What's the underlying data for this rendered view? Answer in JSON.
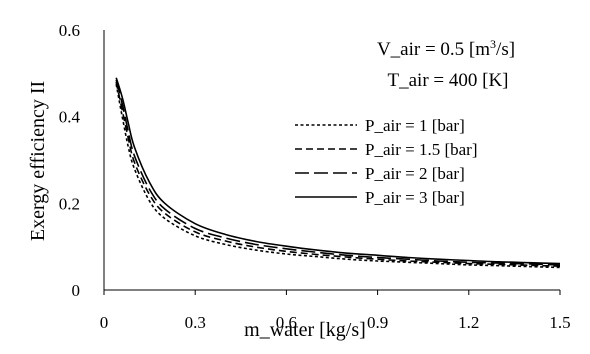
{
  "chart_data": {
    "type": "line",
    "title": "",
    "xlabel": "m_water [kg/s]",
    "ylabel": "Exergy efficiency II",
    "xlim": [
      0,
      1.5
    ],
    "ylim": [
      0,
      0.6
    ],
    "xticks": [
      "0",
      "0.3",
      "0.6",
      "0.9",
      "1.2",
      "1.5"
    ],
    "yticks": [
      "0",
      "0.2",
      "0.4",
      "0.6"
    ],
    "grid": false,
    "legend_position": "right",
    "annotation": {
      "line1_prefix": "V_air = 0.5 [m",
      "line1_sup": "3",
      "line1_suffix": "/s]",
      "line2": "T_air = 400 [K]"
    },
    "series": [
      {
        "name": "P_air = 1 [bar]",
        "dash": "3,2.5",
        "x": [
          0.04,
          0.06,
          0.08,
          0.1,
          0.15,
          0.2,
          0.3,
          0.4,
          0.5,
          0.6,
          0.7,
          0.8,
          0.9,
          1.0,
          1.1,
          1.2,
          1.3,
          1.4,
          1.5
        ],
        "y": [
          0.475,
          0.4,
          0.33,
          0.28,
          0.205,
          0.165,
          0.125,
          0.105,
          0.092,
          0.083,
          0.077,
          0.071,
          0.067,
          0.064,
          0.061,
          0.058,
          0.056,
          0.054,
          0.052
        ]
      },
      {
        "name": "P_air = 1.5 [bar]",
        "dash": "7,4",
        "x": [
          0.04,
          0.06,
          0.08,
          0.1,
          0.15,
          0.2,
          0.3,
          0.4,
          0.5,
          0.6,
          0.7,
          0.8,
          0.9,
          1.0,
          1.1,
          1.2,
          1.3,
          1.4,
          1.5
        ],
        "y": [
          0.48,
          0.415,
          0.35,
          0.295,
          0.22,
          0.177,
          0.134,
          0.113,
          0.099,
          0.089,
          0.082,
          0.076,
          0.071,
          0.067,
          0.064,
          0.061,
          0.059,
          0.057,
          0.055
        ]
      },
      {
        "name": "P_air = 2 [bar]",
        "dash": "14,5",
        "x": [
          0.04,
          0.06,
          0.08,
          0.1,
          0.15,
          0.2,
          0.3,
          0.4,
          0.5,
          0.6,
          0.7,
          0.8,
          0.9,
          1.0,
          1.1,
          1.2,
          1.3,
          1.4,
          1.5
        ],
        "y": [
          0.485,
          0.43,
          0.365,
          0.31,
          0.232,
          0.187,
          0.142,
          0.12,
          0.105,
          0.095,
          0.087,
          0.08,
          0.075,
          0.071,
          0.067,
          0.064,
          0.062,
          0.06,
          0.058
        ]
      },
      {
        "name": "P_air = 3 [bar]",
        "dash": "",
        "x": [
          0.04,
          0.06,
          0.08,
          0.1,
          0.15,
          0.2,
          0.3,
          0.4,
          0.5,
          0.6,
          0.7,
          0.8,
          0.9,
          1.0,
          1.1,
          1.2,
          1.3,
          1.4,
          1.5
        ],
        "y": [
          0.49,
          0.445,
          0.385,
          0.33,
          0.248,
          0.2,
          0.153,
          0.128,
          0.112,
          0.101,
          0.092,
          0.085,
          0.08,
          0.075,
          0.071,
          0.068,
          0.065,
          0.063,
          0.061
        ]
      }
    ]
  }
}
